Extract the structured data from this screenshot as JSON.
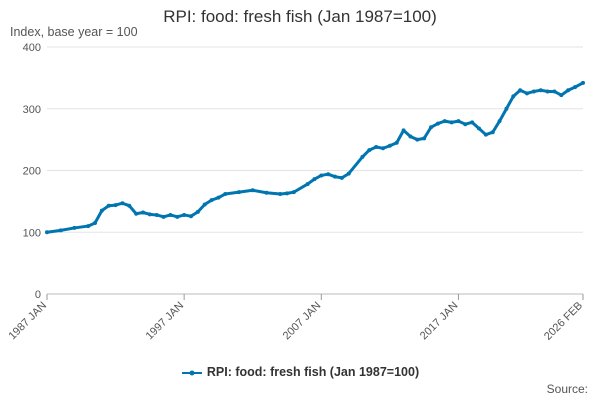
{
  "chart_data": {
    "type": "line",
    "title": "RPI: food: fresh fish (Jan 1987=100)",
    "subtitle": "Index, base year = 100",
    "source_label": "Source:",
    "y_ticks": [
      "0",
      "100",
      "200",
      "300",
      "400"
    ],
    "ylim": [
      0,
      400
    ],
    "x_tick_labels": [
      "1987 JAN",
      "1997 JAN",
      "2007 JAN",
      "2017 JAN",
      "2026 FEB"
    ],
    "x_tick_values": [
      1987.0,
      1997.0,
      2007.0,
      2017.0,
      2026.083
    ],
    "xlim": [
      1987.0,
      2026.083
    ],
    "grid": true,
    "legend_position": "bottom",
    "series": [
      {
        "name": "RPI: food: fresh fish (Jan 1987=100)",
        "color": "#0075b0",
        "x": [
          1987.0,
          1988.0,
          1989.0,
          1990.0,
          1990.5,
          1991.0,
          1991.5,
          1992.0,
          1992.5,
          1993.0,
          1993.5,
          1994.0,
          1994.5,
          1995.0,
          1995.5,
          1996.0,
          1996.5,
          1997.0,
          1997.5,
          1998.0,
          1998.5,
          1999.0,
          1999.5,
          2000.0,
          2001.0,
          2002.0,
          2003.0,
          2004.0,
          2004.5,
          2005.0,
          2006.0,
          2006.5,
          2007.0,
          2007.5,
          2008.0,
          2008.5,
          2009.0,
          2010.0,
          2010.5,
          2011.0,
          2011.5,
          2012.0,
          2012.5,
          2013.0,
          2013.5,
          2014.0,
          2014.5,
          2015.0,
          2015.5,
          2016.0,
          2016.5,
          2017.0,
          2017.5,
          2018.0,
          2018.5,
          2019.0,
          2019.5,
          2020.0,
          2020.5,
          2021.0,
          2021.5,
          2022.0,
          2022.5,
          2023.0,
          2023.5,
          2024.0,
          2024.5,
          2025.0,
          2025.5,
          2026.083
        ],
        "y": [
          100,
          103,
          107,
          110,
          115,
          135,
          143,
          144,
          147,
          143,
          130,
          132,
          129,
          128,
          125,
          128,
          125,
          128,
          126,
          133,
          145,
          152,
          156,
          162,
          165,
          168,
          164,
          162,
          163,
          165,
          178,
          186,
          192,
          194,
          190,
          188,
          195,
          222,
          233,
          238,
          236,
          240,
          245,
          265,
          255,
          250,
          252,
          270,
          276,
          280,
          278,
          280,
          275,
          278,
          268,
          258,
          262,
          280,
          300,
          320,
          330,
          325,
          328,
          330,
          328,
          328,
          322,
          330,
          335,
          342
        ]
      }
    ]
  }
}
